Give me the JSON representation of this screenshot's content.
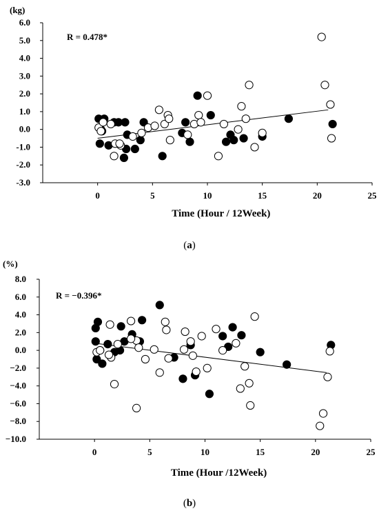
{
  "chart_data": [
    {
      "type": "scatter",
      "panel_label": "(a)",
      "panel_letter": "a",
      "ylabel": "(kg)",
      "xlabel": "Time (Hour / 12Week)",
      "annotation": "R = 0.478*",
      "xlim": [
        -5,
        25
      ],
      "ylim": [
        -3,
        6
      ],
      "xticks": [
        "0",
        "5",
        "10",
        "15",
        "20",
        "25"
      ],
      "yticks": [
        "-3.0",
        "-2.0",
        "-1.0",
        "0.0",
        "1.0",
        "2.0",
        "3.0",
        "4.0",
        "5.0",
        "6.0"
      ],
      "trendline": {
        "x": [
          0,
          21
        ],
        "y": [
          -0.5,
          1.1
        ]
      },
      "series": [
        {
          "marker": "filled",
          "x": [
            0.1,
            0.6,
            0.2,
            0.4,
            1.5,
            1.9,
            2.4,
            2.6,
            2.5,
            3.4,
            3.9,
            4.2,
            5.9,
            7.7,
            8.0,
            8.4,
            9.1,
            10.3,
            11.7,
            12.1,
            12.4,
            13.3,
            15.0,
            17.4,
            21.4,
            0.3,
            2.7,
            1.0
          ],
          "y": [
            0.6,
            0.6,
            -0.8,
            -0.1,
            0.4,
            0.4,
            -1.6,
            -1.1,
            0.4,
            -1.1,
            -0.6,
            0.4,
            -1.5,
            -0.2,
            0.4,
            -0.7,
            1.9,
            0.8,
            -0.7,
            -0.3,
            -0.6,
            -0.5,
            -0.4,
            0.6,
            0.3,
            0.0,
            -0.3,
            -0.9
          ]
        },
        {
          "marker": "open",
          "x": [
            0.1,
            0.3,
            0.5,
            1.5,
            1.6,
            2.1,
            3.2,
            4.0,
            4.6,
            5.2,
            5.6,
            6.1,
            6.4,
            6.5,
            6.6,
            8.2,
            8.8,
            9.2,
            9.4,
            10.0,
            11.0,
            11.5,
            12.8,
            13.1,
            13.5,
            13.8,
            14.3,
            15.0,
            20.4,
            20.7,
            21.2,
            21.3,
            1.2,
            2.0
          ],
          "y": [
            0.1,
            -0.1,
            0.4,
            -1.5,
            -0.8,
            -0.9,
            -0.4,
            -0.2,
            0.1,
            0.2,
            1.1,
            0.3,
            0.8,
            0.6,
            -0.6,
            -0.3,
            0.3,
            0.8,
            0.4,
            1.9,
            -1.5,
            0.3,
            0.0,
            1.3,
            0.6,
            2.5,
            -1.0,
            -0.2,
            5.2,
            2.5,
            1.4,
            -0.5,
            0.3,
            -0.8
          ]
        }
      ]
    },
    {
      "type": "scatter",
      "panel_label": "(b)",
      "panel_letter": "b",
      "ylabel": "(%)",
      "xlabel": "Time (Hour /12Week)",
      "annotation": "R = −0.396*",
      "xlim": [
        -5,
        25
      ],
      "ylim": [
        -10,
        8
      ],
      "xticks": [
        "0",
        "5",
        "10",
        "15",
        "20",
        "25"
      ],
      "yticks": [
        "−10.0",
        "−8.0",
        "−6.0",
        "−4.0",
        "−2.0",
        "0.0",
        "2.0",
        "4.0",
        "6.0",
        "8.0"
      ],
      "trendline": {
        "x": [
          0,
          21
        ],
        "y": [
          0.8,
          -2.5
        ]
      },
      "series": [
        {
          "marker": "filled",
          "x": [
            0.1,
            0.3,
            0.1,
            0.2,
            0.5,
            0.7,
            1.2,
            1.8,
            2.4,
            2.7,
            3.4,
            4.1,
            4.3,
            5.9,
            7.2,
            8.0,
            8.7,
            9.1,
            10.4,
            11.6,
            12.1,
            12.5,
            13.3,
            15.0,
            17.4,
            21.4,
            2.3
          ],
          "y": [
            2.5,
            3.2,
            1.0,
            -1.0,
            0.0,
            -1.5,
            0.7,
            -0.2,
            2.7,
            1.0,
            1.8,
            1.0,
            3.4,
            5.1,
            -0.8,
            -3.2,
            0.6,
            -2.8,
            -4.9,
            1.6,
            0.4,
            2.6,
            1.7,
            -0.2,
            -1.6,
            0.6,
            0.0
          ]
        },
        {
          "marker": "open",
          "x": [
            0.2,
            0.5,
            1.4,
            1.5,
            1.8,
            2.1,
            3.3,
            3.8,
            4.6,
            5.4,
            5.9,
            6.4,
            6.5,
            6.7,
            8.1,
            8.7,
            8.9,
            9.2,
            9.7,
            10.2,
            11.0,
            11.6,
            12.8,
            13.2,
            13.6,
            14.0,
            14.1,
            14.5,
            20.4,
            20.7,
            21.1,
            21.3,
            1.3,
            3.8,
            4.0,
            3.3,
            8.2
          ],
          "y": [
            -0.2,
            0.0,
            2.9,
            -0.8,
            -3.8,
            0.7,
            3.3,
            -6.5,
            -1.0,
            0.1,
            -2.5,
            3.2,
            2.3,
            -0.9,
            0.1,
            1.0,
            -0.6,
            -2.4,
            1.6,
            -2.0,
            2.4,
            0.0,
            0.8,
            -4.3,
            -1.8,
            -3.7,
            -6.2,
            3.8,
            -8.5,
            -7.1,
            -3.0,
            -0.1,
            -0.5,
            1.1,
            0.3,
            1.3,
            2.1
          ]
        }
      ]
    }
  ]
}
